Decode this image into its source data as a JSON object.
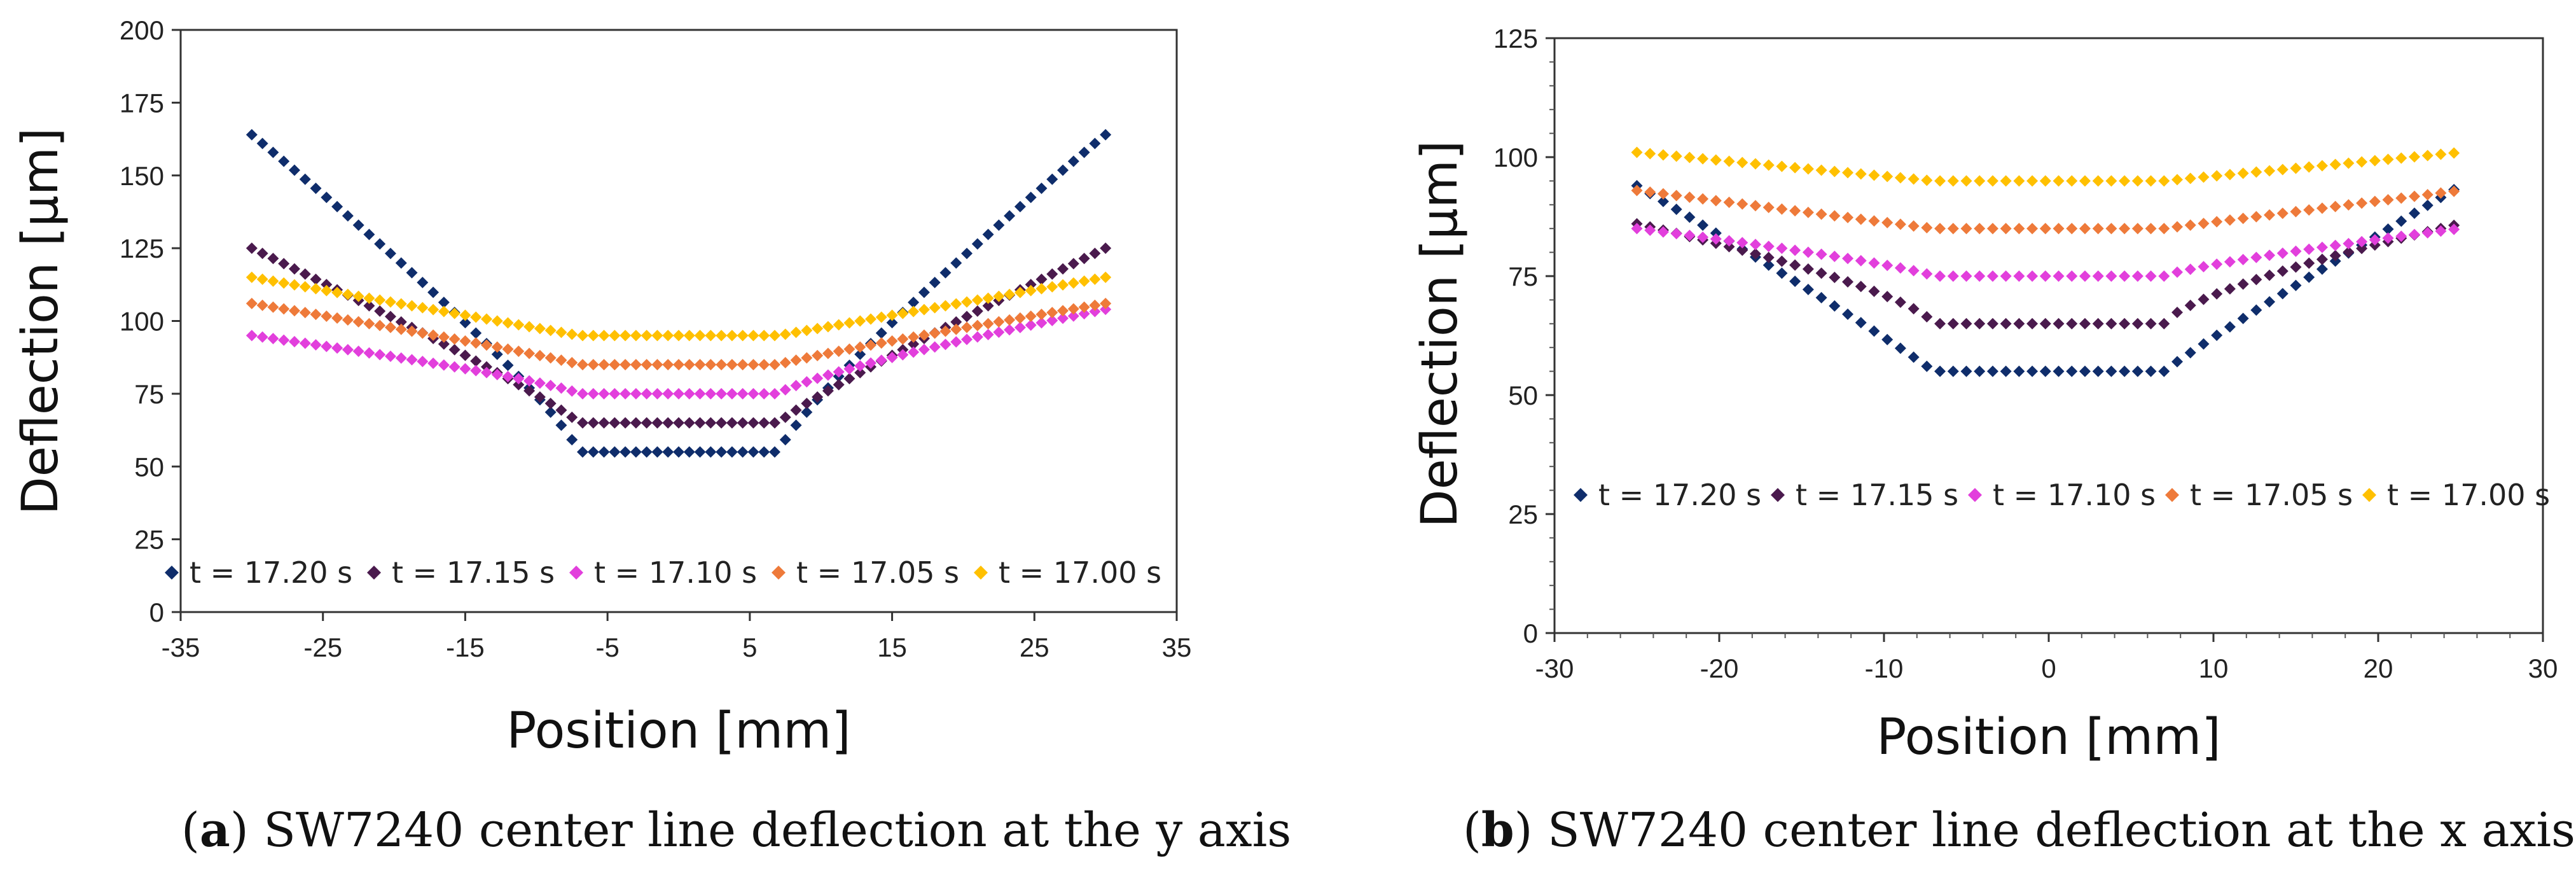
{
  "chart_data": [
    {
      "type": "scatter",
      "xlabel": "Position [mm]",
      "ylabel": "Deflection [µm]",
      "xlim": [
        -35,
        35
      ],
      "ylim": [
        0,
        200
      ],
      "xticks": [
        -35,
        -25,
        -15,
        -5,
        5,
        15,
        25,
        35
      ],
      "yticks": [
        0,
        25,
        50,
        75,
        100,
        125,
        150,
        175,
        200
      ],
      "legend_position": "bottom",
      "caption_letter": "a",
      "caption_text": " SW7240 center line deflection at the y axis",
      "x_start": -30,
      "x_end": 30,
      "step": 0.75,
      "flat_half_width": 7,
      "series": [
        {
          "name": "t = 17.20 s",
          "color": "#0f2d6b",
          "center": 55,
          "edge": 164,
          "exponent": 0.85
        },
        {
          "name": "t = 17.15 s",
          "color": "#4a1a4d",
          "center": 65,
          "edge": 125,
          "exponent": 0.9
        },
        {
          "name": "t = 17.10 s",
          "color": "#e23fdc",
          "center": 75,
          "edge_left": 95,
          "edge_right": 104,
          "exponent": 0.8
        },
        {
          "name": "t = 17.05 s",
          "color": "#ee7a3a",
          "center": 85,
          "edge": 106,
          "exponent": 0.9
        },
        {
          "name": "t = 17.00 s",
          "color": "#ffc000",
          "center": 95,
          "edge": 115,
          "exponent": 1.0
        }
      ]
    },
    {
      "type": "scatter",
      "xlabel": "Position [mm]",
      "ylabel": "Deflection [µm]",
      "xlim": [
        -30,
        30
      ],
      "ylim": [
        0,
        125
      ],
      "xticks": [
        -30,
        -20,
        -10,
        0,
        10,
        20,
        30
      ],
      "yticks": [
        0,
        25,
        50,
        75,
        100,
        125
      ],
      "legend_position": "middle",
      "caption_letter": "b",
      "caption_text": " SW7240 center line deflection at the x axis",
      "x_start": -25,
      "x_end": 25,
      "step": 0.8,
      "flat_half_width": 7,
      "series": [
        {
          "name": "t = 17.20 s",
          "color": "#0f2d6b",
          "center": 55,
          "edge": 94,
          "exponent": 0.95
        },
        {
          "name": "t = 17.15 s",
          "color": "#4a1a4d",
          "center": 65,
          "edge": 86,
          "exponent": 0.7
        },
        {
          "name": "t = 17.10 s",
          "color": "#e23fdc",
          "center": 75,
          "edge": 85,
          "exponent": 0.8
        },
        {
          "name": "t = 17.05 s",
          "color": "#ee7a3a",
          "center": 85,
          "edge": 93,
          "exponent": 1.0
        },
        {
          "name": "t = 17.00 s",
          "color": "#ffc000",
          "center": 95,
          "edge": 101,
          "exponent": 1.0
        }
      ]
    }
  ]
}
